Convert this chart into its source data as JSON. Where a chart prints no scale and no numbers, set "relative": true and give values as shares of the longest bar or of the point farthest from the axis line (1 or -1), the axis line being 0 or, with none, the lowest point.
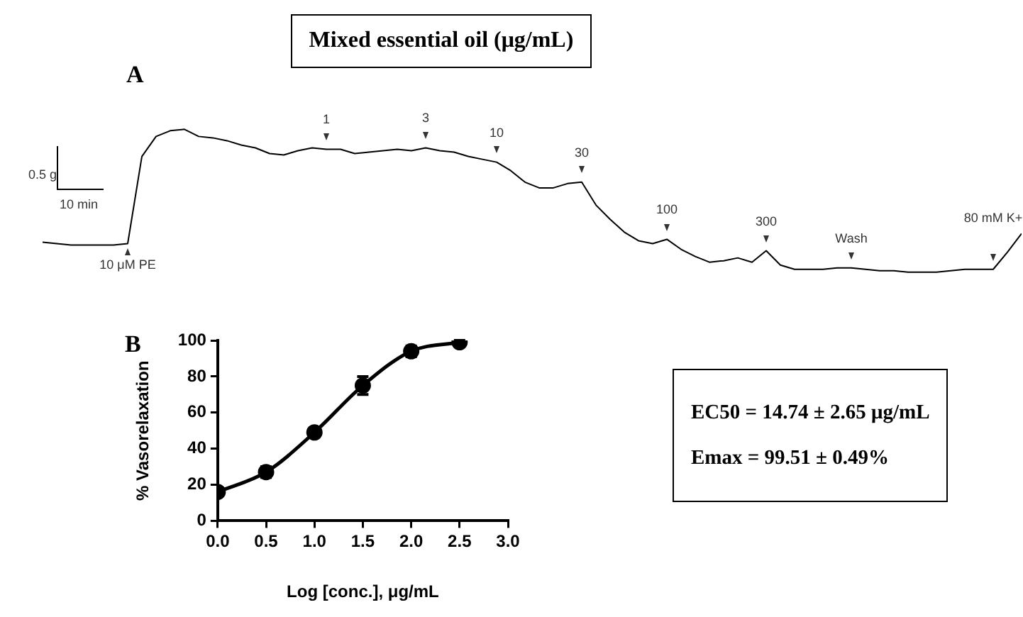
{
  "chart_data": [
    {
      "type": "line",
      "title": "Mixed essential oil (μg/mL)",
      "relative": true,
      "marker": "none",
      "grid": false,
      "annotations": [
        "A",
        "0.5 g",
        "10 min"
      ],
      "categories": [
        null,
        null,
        null,
        null,
        null,
        null,
        "10 μM PE",
        null,
        null,
        null,
        null,
        null,
        null,
        null,
        null,
        null,
        null,
        null,
        null,
        null,
        "1",
        null,
        null,
        null,
        null,
        null,
        null,
        "3",
        null,
        null,
        null,
        null,
        "10",
        null,
        null,
        null,
        null,
        null,
        "30",
        null,
        null,
        null,
        null,
        null,
        "100",
        null,
        null,
        null,
        null,
        null,
        null,
        "300",
        null,
        null,
        null,
        null,
        null,
        "Wash",
        null,
        null,
        null,
        null,
        null,
        null,
        null,
        null,
        null,
        "80 mM K+",
        null,
        null
      ],
      "series": [
        {
          "color": "#000000",
          "values": [
            0.21,
            0.2,
            0.19,
            0.19,
            0.19,
            0.19,
            0.2,
            0.81,
            0.95,
            0.99,
            1,
            0.95,
            0.94,
            0.92,
            0.89,
            0.87,
            0.83,
            0.82,
            0.85,
            0.87,
            0.86,
            0.86,
            0.83,
            0.84,
            0.85,
            0.86,
            0.85,
            0.87,
            0.85,
            0.84,
            0.81,
            0.79,
            0.77,
            0.71,
            0.63,
            0.59,
            0.59,
            0.62,
            0.63,
            0.47,
            0.37,
            0.28,
            0.22,
            0.2,
            0.23,
            0.16,
            0.11,
            0.07,
            0.08,
            0.1,
            0.07,
            0.15,
            0.05,
            0.02,
            0.02,
            0.02,
            0.03,
            0.03,
            0.02,
            0.01,
            0.01,
            0,
            0,
            0,
            0.01,
            0.02,
            0.02,
            0.02,
            0.14,
            0.27
          ]
        }
      ]
    },
    {
      "type": "line",
      "xlabel": "Log [conc.], μg/mL",
      "ylabel": "% Vasorelaxation",
      "marker": "circle",
      "grid": false,
      "xlim": [
        0,
        3
      ],
      "xticks": [
        {
          "value": 0,
          "label": "0.0"
        },
        {
          "value": 0.5,
          "label": "0.5"
        },
        {
          "value": 1,
          "label": "1.0"
        },
        {
          "value": 1.5,
          "label": "1.5"
        },
        {
          "value": 2,
          "label": "2.0"
        },
        {
          "value": 2.5,
          "label": "2.5"
        },
        {
          "value": 3,
          "label": "3.0"
        }
      ],
      "ylim": [
        0,
        100
      ],
      "yticks": [
        0,
        20,
        40,
        60,
        80,
        100
      ],
      "annotations": [
        "B",
        "EC50 = 14.74 ± 2.65 μg/mL",
        "Emax = 99.51 ± 0.49%"
      ],
      "x": [
        0,
        0.5,
        1,
        1.5,
        2,
        2.5
      ],
      "series": [
        {
          "color": "#000000",
          "values": [
            16,
            27,
            49,
            75,
            94,
            99
          ],
          "errors": [
            null,
            3,
            2.5,
            5,
            3,
            1
          ]
        }
      ]
    }
  ]
}
